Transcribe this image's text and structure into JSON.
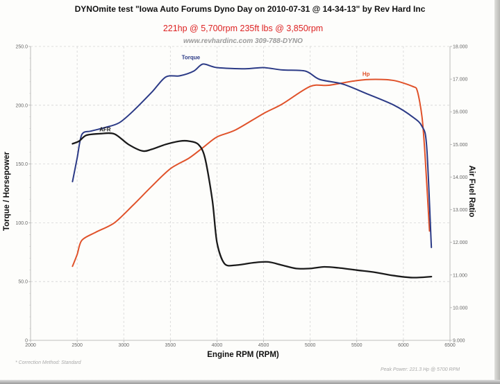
{
  "chart_data": {
    "type": "line",
    "title": "DYNOmite test \"Iowa Auto Forums Dyno Day on 2010-07-31 @ 14-34-13\" by Rev Hard Inc",
    "subtitle": "221hp @ 5,700rpm 235ft lbs @ 3,850rpm",
    "watermark": "www.revhardinc.com 309-788-DYNO",
    "xlabel": "Engine RPM (RPM)",
    "ylabel": "Torque / Horsepower",
    "ylabel_right": "Air Fuel Ratio",
    "xlim": [
      2000,
      6500
    ],
    "ylim": [
      0,
      250
    ],
    "ylim_right": [
      9,
      18
    ],
    "grid": true,
    "x_ticks": [
      "2000",
      "2500",
      "3000",
      "3500",
      "4000",
      "4500",
      "5000",
      "5500",
      "6000",
      "6500"
    ],
    "y_ticks": [
      "0",
      "50.0",
      "100.0",
      "150.0",
      "200.0",
      "250.0"
    ],
    "y_ticks_right": [
      "9.000",
      "10.000",
      "11.000",
      "12.000",
      "13.000",
      "14.000",
      "15.000",
      "16.000",
      "17.000",
      "18.000"
    ],
    "series": [
      {
        "name": "Torque",
        "axis": "left",
        "color": "#2b3a86",
        "x": [
          2450,
          2500,
          2550,
          2650,
          2800,
          2950,
          3100,
          3300,
          3450,
          3600,
          3750,
          3850,
          4000,
          4300,
          4500,
          4700,
          4950,
          5100,
          5350,
          5600,
          5900,
          6100,
          6200,
          6250,
          6300
        ],
        "y": [
          135,
          155,
          175,
          178,
          181,
          185,
          195,
          211,
          224,
          225,
          229,
          235,
          232,
          231,
          232,
          230,
          229,
          222,
          218,
          210,
          200,
          190,
          182,
          165,
          79
        ]
      },
      {
        "name": "Hp",
        "axis": "left",
        "color": "#e0522a",
        "x": [
          2450,
          2500,
          2550,
          2700,
          2900,
          3100,
          3300,
          3500,
          3700,
          3850,
          4000,
          4200,
          4500,
          4700,
          5000,
          5200,
          5500,
          5700,
          5900,
          6100,
          6150,
          6200,
          6230,
          6280
        ],
        "y": [
          63,
          73,
          85,
          92,
          100,
          115,
          131,
          146,
          155,
          164,
          173,
          179,
          193,
          201,
          216,
          217,
          221,
          222,
          221,
          216,
          212,
          190,
          160,
          93
        ]
      },
      {
        "name": "AFR",
        "axis": "right",
        "color": "#1a1a1a",
        "x": [
          2450,
          2520,
          2600,
          2750,
          2900,
          3050,
          3200,
          3300,
          3450,
          3600,
          3700,
          3800,
          3870,
          3950,
          4000,
          4080,
          4200,
          4400,
          4550,
          4700,
          4850,
          5000,
          5150,
          5300,
          5500,
          5700,
          5900,
          6100,
          6300
        ],
        "y": [
          15.02,
          15.1,
          15.28,
          15.33,
          15.32,
          15.0,
          14.8,
          14.85,
          15.0,
          15.1,
          15.1,
          15.0,
          14.6,
          13.3,
          12.0,
          11.35,
          11.3,
          11.38,
          11.4,
          11.3,
          11.2,
          11.2,
          11.25,
          11.22,
          11.15,
          11.08,
          10.98,
          10.92,
          10.95
        ]
      }
    ],
    "series_labels": {
      "torque": "Torque",
      "hp": "Hp",
      "afr": "AFR"
    },
    "footnote_left": "* Correction Method: Standard",
    "footnote_right": "Peak Power: 221.3 Hp @ 5700 RPM"
  }
}
